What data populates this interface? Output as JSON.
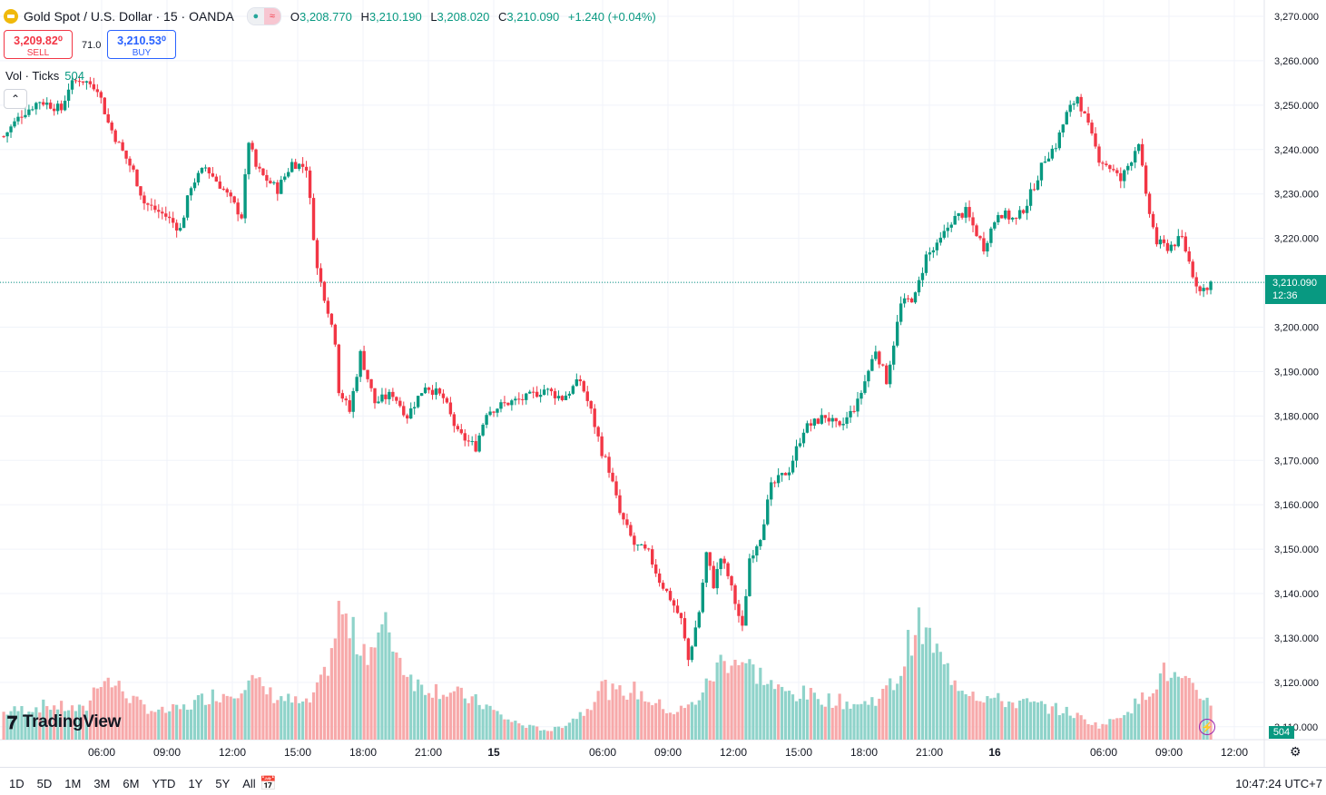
{
  "header": {
    "symbol": "Gold Spot / U.S. Dollar · 15 · OANDA",
    "toggle_a": "●",
    "toggle_b": "≈",
    "o_label": "O",
    "o_value": "3,208.770",
    "h_label": "H",
    "h_value": "3,210.190",
    "l_label": "L",
    "l_value": "3,208.020",
    "c_label": "C",
    "c_value": "3,210.090",
    "change": "+1.240 (+0.04%)"
  },
  "trade": {
    "sell_price": "3,209.82⁰",
    "sell_label": "SELL",
    "spread": "71.0",
    "buy_price": "3,210.53⁰",
    "buy_label": "BUY"
  },
  "volume_legend": {
    "label": "Vol · Ticks",
    "value": "504"
  },
  "collapse_icon": "⌃",
  "logo_text": "TradingView",
  "logo_mark": "𝟕",
  "current_price": {
    "price": "3,210.090",
    "countdown": "12:36"
  },
  "current_volume": "504",
  "ranges": [
    "1D",
    "5D",
    "1M",
    "3M",
    "6M",
    "YTD",
    "1Y",
    "5Y",
    "All"
  ],
  "calendar_icon": "📅",
  "clock": "10:47:24 UTC+7",
  "settings_icon": "⚙",
  "flash_icon": "⚡",
  "colors": {
    "up": "#089981",
    "down": "#f23645",
    "vol_up": "#8fd3ca",
    "vol_down": "#f7a9aa"
  },
  "chart_data": {
    "type": "candlestick",
    "y_ticks": [
      "3,270.000",
      "3,260.000",
      "3,250.000",
      "3,240.000",
      "3,230.000",
      "3,220.000",
      "3,210.000",
      "3,200.000",
      "3,190.000",
      "3,180.000",
      "3,170.000",
      "3,160.000",
      "3,150.000",
      "3,140.000",
      "3,130.000",
      "3,120.000",
      "3,110.000"
    ],
    "y_values": [
      3270,
      3260,
      3250,
      3240,
      3230,
      3220,
      3210,
      3200,
      3190,
      3180,
      3170,
      3160,
      3150,
      3140,
      3130,
      3120,
      3110
    ],
    "x_ticks": [
      "06:00",
      "09:00",
      "12:00",
      "15:00",
      "18:00",
      "21:00",
      "15",
      "06:00",
      "09:00",
      "12:00",
      "15:00",
      "18:00",
      "21:00",
      "16",
      "06:00",
      "09:00",
      "12:00"
    ],
    "x_tick_bold": [
      false,
      false,
      false,
      false,
      false,
      false,
      true,
      false,
      false,
      false,
      false,
      false,
      false,
      true,
      false,
      false,
      false
    ],
    "ylim": [
      3107,
      3273
    ],
    "grid": true,
    "close_path": [
      [
        0,
        3243
      ],
      [
        5,
        3248
      ],
      [
        10,
        3251
      ],
      [
        16,
        3249
      ],
      [
        18,
        3254
      ],
      [
        21,
        3256
      ],
      [
        26,
        3254
      ],
      [
        29,
        3246
      ],
      [
        32,
        3241
      ],
      [
        36,
        3235
      ],
      [
        39,
        3228
      ],
      [
        45,
        3225
      ],
      [
        49,
        3222
      ],
      [
        52,
        3232
      ],
      [
        56,
        3236
      ],
      [
        61,
        3231
      ],
      [
        66,
        3225
      ],
      [
        68,
        3242
      ],
      [
        70,
        3236
      ],
      [
        72,
        3234
      ],
      [
        76,
        3231
      ],
      [
        80,
        3237
      ],
      [
        84,
        3236
      ],
      [
        87,
        3213
      ],
      [
        90,
        3204
      ],
      [
        92,
        3197
      ],
      [
        93,
        3186
      ],
      [
        96,
        3181
      ],
      [
        99,
        3194
      ],
      [
        103,
        3183
      ],
      [
        108,
        3185
      ],
      [
        112,
        3180
      ],
      [
        117,
        3187
      ],
      [
        122,
        3184
      ],
      [
        126,
        3176
      ],
      [
        131,
        3173
      ],
      [
        134,
        3181
      ],
      [
        140,
        3183
      ],
      [
        145,
        3184
      ],
      [
        150,
        3186
      ],
      [
        155,
        3184
      ],
      [
        160,
        3188
      ],
      [
        163,
        3181
      ],
      [
        166,
        3172
      ],
      [
        168,
        3168
      ],
      [
        171,
        3158
      ],
      [
        175,
        3151
      ],
      [
        179,
        3149
      ],
      [
        182,
        3143
      ],
      [
        185,
        3139
      ],
      [
        188,
        3134
      ],
      [
        190,
        3125
      ],
      [
        193,
        3136
      ],
      [
        195,
        3149
      ],
      [
        197,
        3142
      ],
      [
        199,
        3148
      ],
      [
        201,
        3144
      ],
      [
        203,
        3138
      ],
      [
        205,
        3132
      ],
      [
        207,
        3148
      ],
      [
        210,
        3153
      ],
      [
        213,
        3164
      ],
      [
        218,
        3168
      ],
      [
        222,
        3177
      ],
      [
        228,
        3180
      ],
      [
        232,
        3177
      ],
      [
        237,
        3183
      ],
      [
        242,
        3195
      ],
      [
        245,
        3188
      ],
      [
        249,
        3205
      ],
      [
        253,
        3207
      ],
      [
        256,
        3216
      ],
      [
        259,
        3218
      ],
      [
        263,
        3224
      ],
      [
        267,
        3226
      ],
      [
        272,
        3218
      ],
      [
        276,
        3226
      ],
      [
        281,
        3224
      ],
      [
        284,
        3228
      ],
      [
        287,
        3234
      ],
      [
        289,
        3238
      ],
      [
        292,
        3241
      ],
      [
        295,
        3248
      ],
      [
        298,
        3252
      ],
      [
        301,
        3245
      ],
      [
        304,
        3238
      ],
      [
        307,
        3236
      ],
      [
        310,
        3233
      ],
      [
        313,
        3238
      ],
      [
        315,
        3242
      ],
      [
        317,
        3229
      ],
      [
        320,
        3219
      ],
      [
        323,
        3218
      ],
      [
        327,
        3220
      ],
      [
        330,
        3212
      ],
      [
        332,
        3208
      ],
      [
        335,
        3210
      ]
    ],
    "volume_path": [
      [
        0,
        30
      ],
      [
        12,
        38
      ],
      [
        22,
        32
      ],
      [
        26,
        70
      ],
      [
        32,
        55
      ],
      [
        36,
        40
      ],
      [
        42,
        30
      ],
      [
        49,
        35
      ],
      [
        55,
        48
      ],
      [
        62,
        52
      ],
      [
        66,
        68
      ],
      [
        72,
        50
      ],
      [
        78,
        42
      ],
      [
        82,
        38
      ],
      [
        86,
        62
      ],
      [
        89,
        105
      ],
      [
        91,
        148
      ],
      [
        93,
        120
      ],
      [
        95,
        110
      ],
      [
        99,
        100
      ],
      [
        104,
        125
      ],
      [
        107,
        88
      ],
      [
        112,
        60
      ],
      [
        118,
        55
      ],
      [
        124,
        48
      ],
      [
        130,
        38
      ],
      [
        136,
        22
      ],
      [
        142,
        14
      ],
      [
        148,
        10
      ],
      [
        152,
        18
      ],
      [
        158,
        35
      ],
      [
        161,
        62
      ],
      [
        165,
        50
      ],
      [
        170,
        55
      ],
      [
        176,
        40
      ],
      [
        181,
        30
      ],
      [
        186,
        38
      ],
      [
        190,
        60
      ],
      [
        194,
        88
      ],
      [
        198,
        90
      ],
      [
        204,
        72
      ],
      [
        210,
        52
      ],
      [
        216,
        50
      ],
      [
        222,
        45
      ],
      [
        226,
        42
      ],
      [
        232,
        38
      ],
      [
        238,
        52
      ],
      [
        242,
        70
      ],
      [
        244,
        100
      ],
      [
        246,
        125
      ],
      [
        248,
        120
      ],
      [
        251,
        105
      ],
      [
        254,
        80
      ],
      [
        258,
        62
      ],
      [
        264,
        48
      ],
      [
        270,
        42
      ],
      [
        276,
        40
      ],
      [
        283,
        35
      ],
      [
        288,
        30
      ],
      [
        292,
        22
      ],
      [
        296,
        15
      ],
      [
        299,
        20
      ],
      [
        303,
        32
      ],
      [
        307,
        42
      ],
      [
        310,
        60
      ],
      [
        314,
        75
      ],
      [
        317,
        65
      ],
      [
        320,
        58
      ],
      [
        322,
        50
      ],
      [
        325,
        45
      ],
      [
        327,
        42
      ]
    ],
    "n_bars": 336
  }
}
